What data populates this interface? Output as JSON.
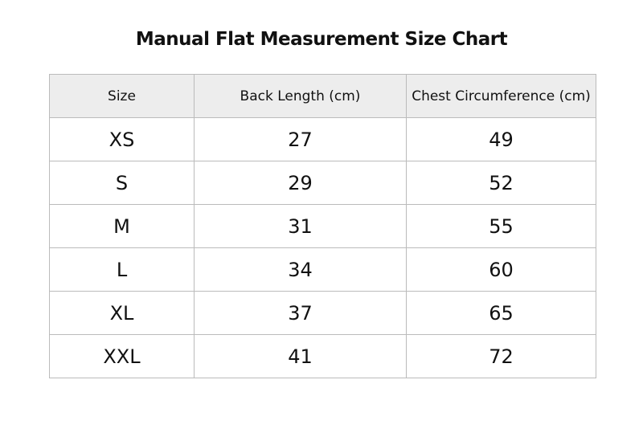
{
  "title": "Manual Flat Measurement Size Chart",
  "table": {
    "header": [
      "Size",
      "Back Length (cm)",
      "Chest Circumference (cm)"
    ],
    "rows": [
      [
        "XS",
        27,
        49
      ],
      [
        "S",
        29,
        52
      ],
      [
        "M",
        31,
        55
      ],
      [
        "L",
        34,
        60
      ],
      [
        "XL",
        37,
        65
      ],
      [
        "XXL",
        41,
        72
      ]
    ]
  }
}
